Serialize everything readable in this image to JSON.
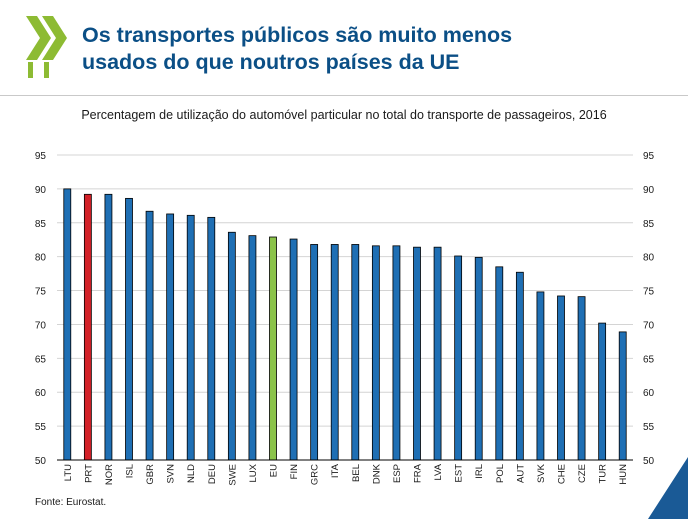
{
  "header": {
    "title_line1": "Os transportes públicos são muito menos",
    "title_line2": "usados do que noutros países da UE",
    "logo_icon": "oecd-chevrons-icon"
  },
  "colors": {
    "title": "#0b4f86",
    "bar_default": "#1f6fb4",
    "bar_portugal": "#d32027",
    "bar_eu": "#8bc34a",
    "logo": "#8dbb33",
    "corner": "#1a5a96"
  },
  "footer": {
    "source": "Fonte: Eurostat."
  },
  "chart_data": {
    "type": "bar",
    "title": "Percentagem de utilização do automóvel particular no total do transporte de passageiros, 2016",
    "categories": [
      "LTU",
      "PRT",
      "NOR",
      "ISL",
      "GBR",
      "SVN",
      "NLD",
      "DEU",
      "SWE",
      "LUX",
      "EU",
      "FIN",
      "GRC",
      "ITA",
      "BEL",
      "DNK",
      "ESP",
      "FRA",
      "LVA",
      "EST",
      "IRL",
      "POL",
      "AUT",
      "SVK",
      "CHE",
      "CZE",
      "TUR",
      "HUN"
    ],
    "values": [
      90.0,
      89.2,
      89.2,
      88.6,
      86.7,
      86.3,
      86.1,
      85.8,
      83.6,
      83.1,
      82.9,
      82.6,
      81.8,
      81.8,
      81.8,
      81.6,
      81.6,
      81.4,
      81.4,
      80.1,
      79.9,
      78.5,
      77.7,
      74.8,
      74.2,
      74.1,
      70.2,
      68.9
    ],
    "highlight": {
      "PRT": "bar_portugal",
      "EU": "bar_eu"
    },
    "ylim": [
      50,
      95
    ],
    "yticks": [
      50,
      55,
      60,
      65,
      70,
      75,
      80,
      85,
      90,
      95
    ],
    "xlabel": "",
    "ylabel": "",
    "grid": true,
    "dual_y_axis": true
  }
}
